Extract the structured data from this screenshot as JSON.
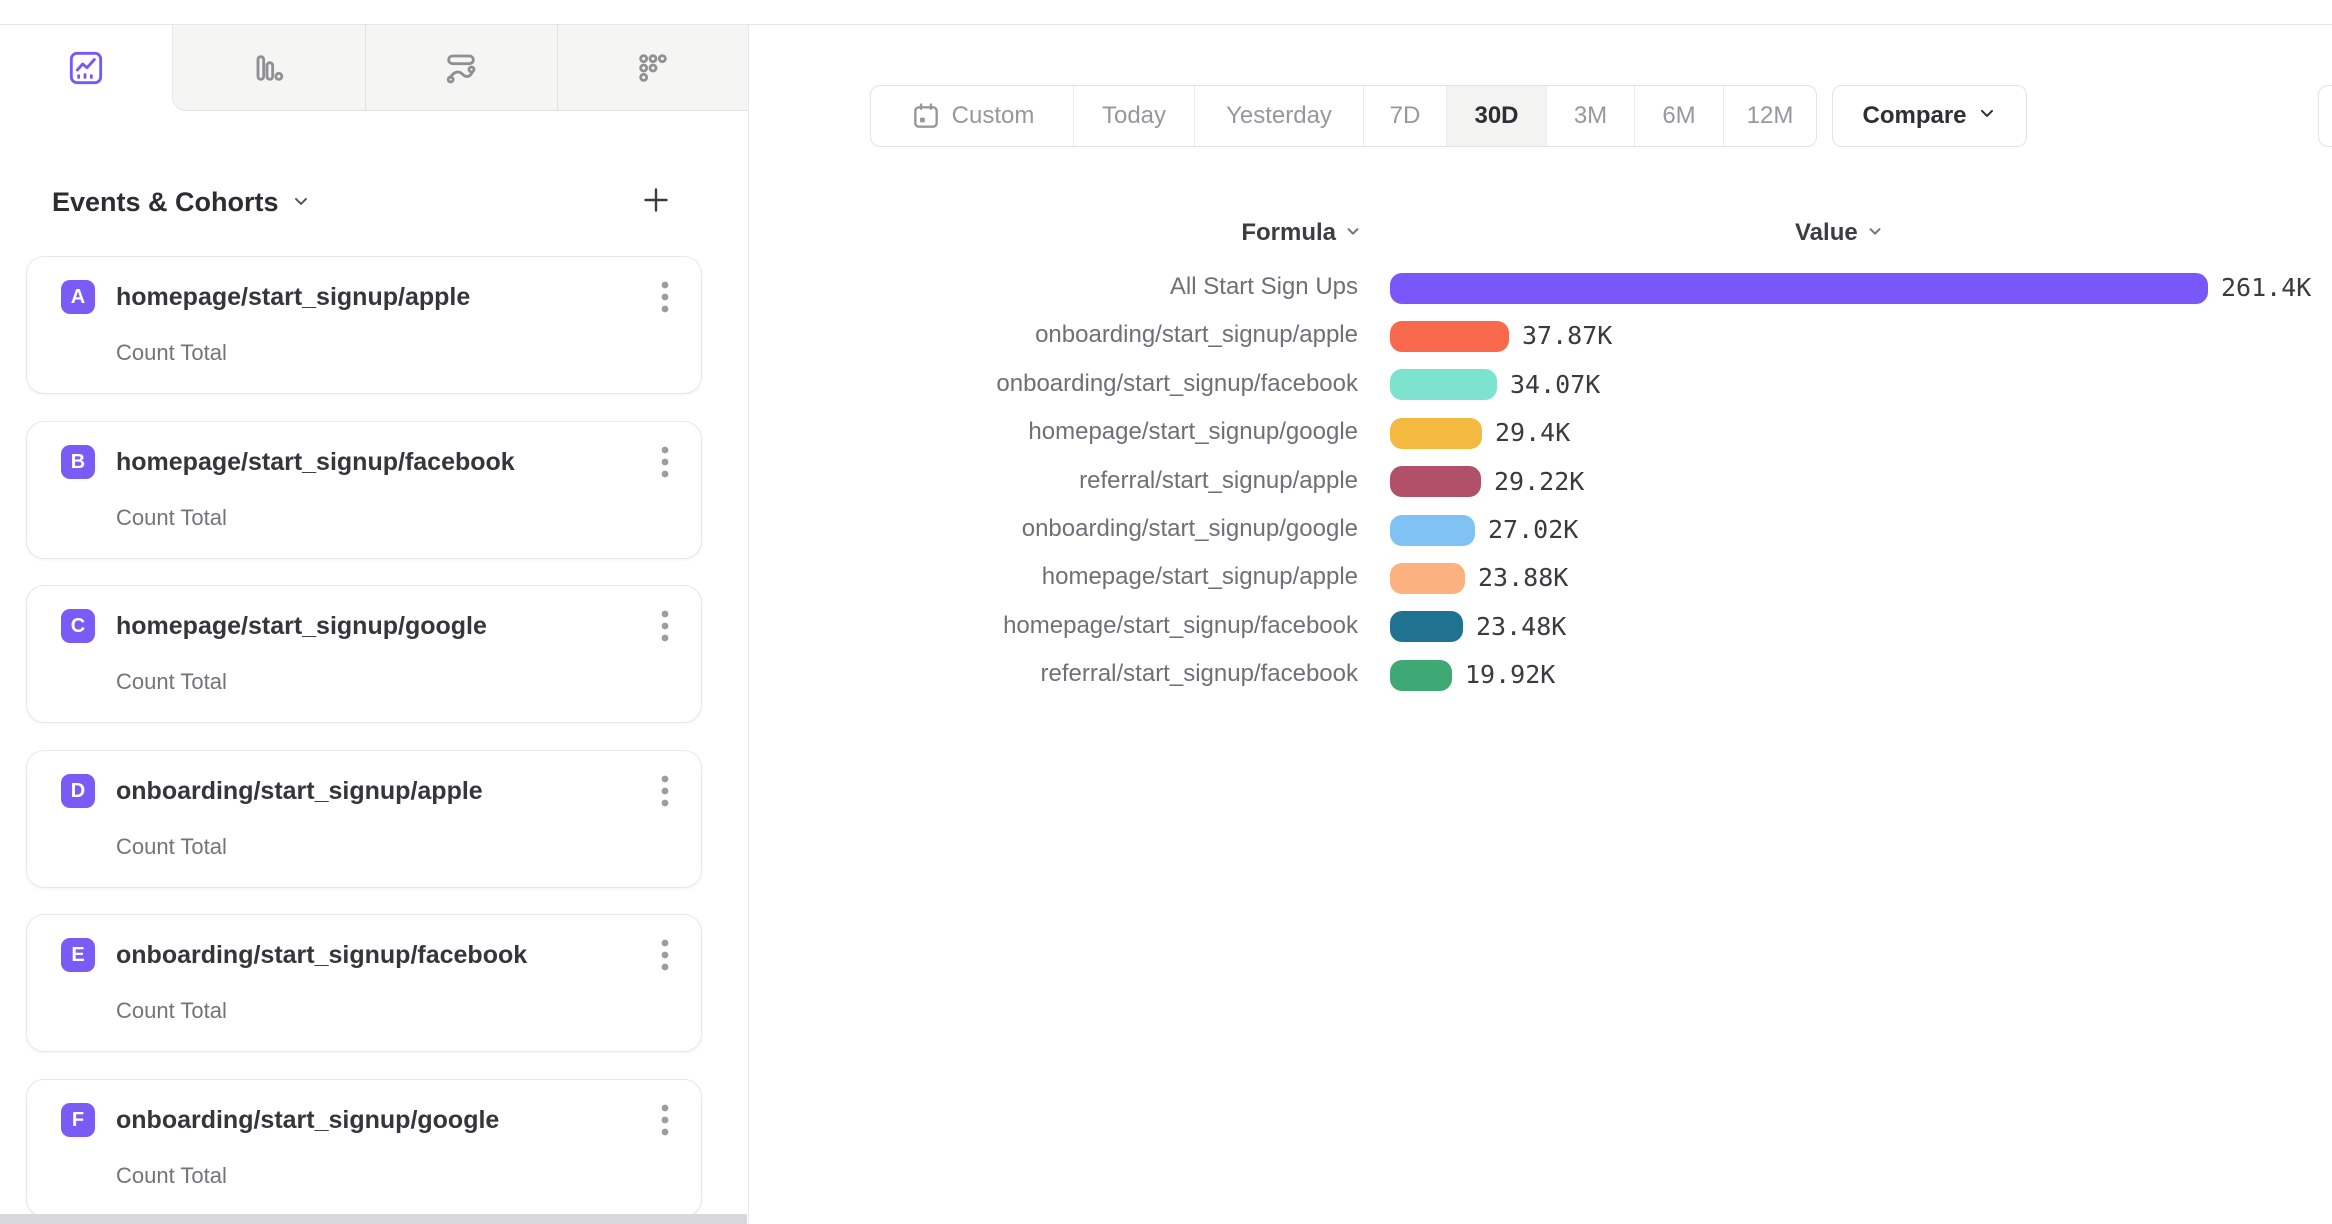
{
  "tabs": [
    {
      "icon": "insights-line-chart-icon",
      "selected": true
    },
    {
      "icon": "bar-chart-icon",
      "selected": false
    },
    {
      "icon": "flows-icon",
      "selected": false
    },
    {
      "icon": "retention-dots-icon",
      "selected": false
    }
  ],
  "sidebar": {
    "header": {
      "label": "Events & Cohorts",
      "chevron": "chevron-down-icon",
      "add": "plus-icon"
    },
    "events": [
      {
        "letter": "A",
        "name": "homepage/start_signup/apple",
        "metric": "Count Total"
      },
      {
        "letter": "B",
        "name": "homepage/start_signup/facebook",
        "metric": "Count Total"
      },
      {
        "letter": "C",
        "name": "homepage/start_signup/google",
        "metric": "Count Total"
      },
      {
        "letter": "D",
        "name": "onboarding/start_signup/apple",
        "metric": "Count Total"
      },
      {
        "letter": "E",
        "name": "onboarding/start_signup/facebook",
        "metric": "Count Total"
      },
      {
        "letter": "F",
        "name": "onboarding/start_signup/google",
        "metric": "Count Total"
      }
    ]
  },
  "toolbar": {
    "date_ranges": [
      {
        "label": "Custom",
        "icon": "calendar-icon",
        "selected": false
      },
      {
        "label": "Today",
        "selected": false
      },
      {
        "label": "Yesterday",
        "selected": false
      },
      {
        "label": "7D",
        "selected": false
      },
      {
        "label": "30D",
        "selected": true
      },
      {
        "label": "3M",
        "selected": false
      },
      {
        "label": "6M",
        "selected": false
      },
      {
        "label": "12M",
        "selected": false
      }
    ],
    "compare_label": "Compare"
  },
  "chart_data": {
    "type": "bar",
    "orientation": "horizontal",
    "headers": {
      "formula": "Formula",
      "value": "Value"
    },
    "categories": [
      "All Start Sign Ups",
      "onboarding/start_signup/apple",
      "onboarding/start_signup/facebook",
      "homepage/start_signup/google",
      "referral/start_signup/apple",
      "onboarding/start_signup/google",
      "homepage/start_signup/apple",
      "homepage/start_signup/facebook",
      "referral/start_signup/facebook"
    ],
    "values": [
      261400,
      37870,
      34070,
      29400,
      29220,
      27020,
      23880,
      23480,
      19920
    ],
    "value_labels": [
      "261.4K",
      "37.87K",
      "34.07K",
      "29.4K",
      "29.22K",
      "27.02K",
      "23.88K",
      "23.48K",
      "19.92K"
    ],
    "colors": [
      "#7957f8",
      "#f8684c",
      "#7de2ce",
      "#f4ba40",
      "#b15069",
      "#81c2f4",
      "#fbb280",
      "#1f7391",
      "#3ea974"
    ],
    "xlim": [
      0,
      261400
    ],
    "grid": false,
    "legend": "none"
  },
  "colors": {
    "accent_purple": "#7857f8",
    "chip_purple": "#7b5bf6",
    "selected_segment_bg": "#f3f3f2",
    "muted_text": "#97979e",
    "label_text": "#6f6f78"
  }
}
